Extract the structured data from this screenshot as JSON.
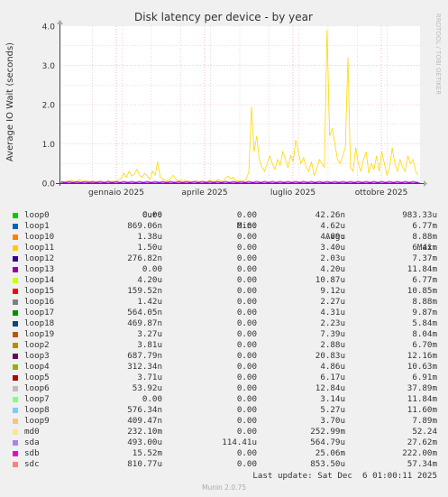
{
  "chart_data": {
    "type": "line",
    "title": "Disk latency per device - by year",
    "ylabel": "Average IO Wait (seconds)",
    "side_label": "RRDTOOL / TOBI OETIKER",
    "ylim": [
      0,
      4.0
    ],
    "y_ticks": [
      {
        "v": 0.0,
        "label": "0.0"
      },
      {
        "v": 1.0,
        "label": "1.0"
      },
      {
        "v": 2.0,
        "label": "2.0"
      },
      {
        "v": 3.0,
        "label": "3.0"
      },
      {
        "v": 4.0,
        "label": "4.0"
      }
    ],
    "x_ticks": [
      {
        "pos": 0.16,
        "label": "gennaio 2025"
      },
      {
        "pos": 0.405,
        "label": "aprile 2025"
      },
      {
        "pos": 0.65,
        "label": "luglio 2025"
      },
      {
        "pos": 0.895,
        "label": "ottobre 2025"
      }
    ],
    "grid": true,
    "colors": {
      "md0": "#ffd700",
      "sda": "#cc00cc",
      "sdb": "#ff00ff",
      "baseline": "#5500aa",
      "grid_major": "#ff9999",
      "grid_minor": "#e0c0c0"
    },
    "series_md0": [
      0.03,
      0.02,
      0.05,
      0.04,
      0.08,
      0.03,
      0.02,
      0.1,
      0.05,
      0.03,
      0.06,
      0.04,
      0.02,
      0.03,
      0.05,
      0.04,
      0.03,
      0.02,
      0.06,
      0.04,
      0.05,
      0.03,
      0.08,
      0.12,
      0.25,
      0.15,
      0.3,
      0.18,
      0.22,
      0.35,
      0.2,
      0.15,
      0.25,
      0.18,
      0.1,
      0.3,
      0.2,
      0.55,
      0.15,
      0.1,
      0.08,
      0.05,
      0.12,
      0.2,
      0.1,
      0.05,
      0.08,
      0.06,
      0.04,
      0.05,
      0.03,
      0.04,
      0.06,
      0.03,
      0.05,
      0.04,
      0.03,
      0.08,
      0.05,
      0.04,
      0.1,
      0.06,
      0.04,
      0.12,
      0.18,
      0.1,
      0.15,
      0.05,
      0.06,
      0.04,
      0.05,
      0.1,
      0.3,
      1.95,
      0.8,
      1.2,
      0.6,
      0.4,
      0.3,
      0.5,
      0.7,
      0.5,
      0.35,
      0.6,
      0.45,
      0.8,
      0.6,
      0.4,
      0.7,
      0.55,
      1.1,
      0.8,
      0.5,
      0.65,
      0.4,
      0.3,
      0.55,
      0.2,
      0.35,
      0.6,
      0.5,
      0.4,
      3.9,
      1.2,
      1.4,
      1.0,
      0.6,
      0.5,
      0.7,
      0.9,
      3.2,
      0.4,
      0.3,
      0.9,
      0.5,
      0.3,
      0.6,
      0.8,
      0.25,
      0.5,
      0.35,
      0.7,
      0.3,
      0.8,
      0.5,
      0.2,
      0.4,
      0.9,
      0.5,
      0.3,
      0.6,
      0.4,
      0.3,
      0.7,
      0.5,
      0.6,
      0.3,
      0.2
    ]
  },
  "legend": {
    "headers": {
      "cur": "Cur:",
      "min": "Min:",
      "avg": "Avg:",
      "max": "Max:"
    },
    "rows": [
      {
        "name": "loop0",
        "color": "#00cc00",
        "cur": "0.00",
        "min": "0.00",
        "avg": "42.26n",
        "max": "983.33u"
      },
      {
        "name": "loop1",
        "color": "#0066b3",
        "cur": "869.06n",
        "min": "0.00",
        "avg": "4.62u",
        "max": "6.77m"
      },
      {
        "name": "loop10",
        "color": "#ff8000",
        "cur": "1.38u",
        "min": "0.00",
        "avg": "4.89u",
        "max": "8.88m"
      },
      {
        "name": "loop11",
        "color": "#ffcc00",
        "cur": "1.50u",
        "min": "0.00",
        "avg": "3.40u",
        "max": "6.41m"
      },
      {
        "name": "loop12",
        "color": "#330099",
        "cur": "276.82n",
        "min": "0.00",
        "avg": "2.03u",
        "max": "7.37m"
      },
      {
        "name": "loop13",
        "color": "#990099",
        "cur": "0.00",
        "min": "0.00",
        "avg": "4.20u",
        "max": "11.84m"
      },
      {
        "name": "loop14",
        "color": "#ccff00",
        "cur": "4.20u",
        "min": "0.00",
        "avg": "10.87u",
        "max": "6.77m"
      },
      {
        "name": "loop15",
        "color": "#ff0000",
        "cur": "159.52n",
        "min": "0.00",
        "avg": "9.12u",
        "max": "10.85m"
      },
      {
        "name": "loop16",
        "color": "#808080",
        "cur": "1.42u",
        "min": "0.00",
        "avg": "2.27u",
        "max": "8.88m"
      },
      {
        "name": "loop17",
        "color": "#008f00",
        "cur": "564.05n",
        "min": "0.00",
        "avg": "4.31u",
        "max": "9.87m"
      },
      {
        "name": "loop18",
        "color": "#00487d",
        "cur": "469.87n",
        "min": "0.00",
        "avg": "2.23u",
        "max": "5.84m"
      },
      {
        "name": "loop19",
        "color": "#b35a00",
        "cur": "3.27u",
        "min": "0.00",
        "avg": "7.39u",
        "max": "8.04m"
      },
      {
        "name": "loop2",
        "color": "#b38f00",
        "cur": "3.81u",
        "min": "0.00",
        "avg": "2.88u",
        "max": "6.70m"
      },
      {
        "name": "loop3",
        "color": "#6b006b",
        "cur": "687.79n",
        "min": "0.00",
        "avg": "20.83u",
        "max": "12.16m"
      },
      {
        "name": "loop4",
        "color": "#8fb300",
        "cur": "312.34n",
        "min": "0.00",
        "avg": "4.86u",
        "max": "10.63m"
      },
      {
        "name": "loop5",
        "color": "#b30000",
        "cur": "3.71u",
        "min": "0.00",
        "avg": "6.17u",
        "max": "6.91m"
      },
      {
        "name": "loop6",
        "color": "#bebebe",
        "cur": "53.92u",
        "min": "0.00",
        "avg": "12.84u",
        "max": "37.89m"
      },
      {
        "name": "loop7",
        "color": "#80ff80",
        "cur": "0.00",
        "min": "0.00",
        "avg": "3.14u",
        "max": "11.84m"
      },
      {
        "name": "loop8",
        "color": "#80c9ff",
        "cur": "576.34n",
        "min": "0.00",
        "avg": "5.27u",
        "max": "11.60m"
      },
      {
        "name": "loop9",
        "color": "#ffc080",
        "cur": "409.47n",
        "min": "0.00",
        "avg": "3.70u",
        "max": "7.89m"
      },
      {
        "name": "md0",
        "color": "#ffe680",
        "cur": "232.10m",
        "min": "0.00",
        "avg": "252.99m",
        "max": "52.24"
      },
      {
        "name": "sda",
        "color": "#aa80ff",
        "cur": "493.00u",
        "min": "114.41u",
        "avg": "564.79u",
        "max": "27.62m"
      },
      {
        "name": "sdb",
        "color": "#ee00cc",
        "cur": "15.52m",
        "min": "0.00",
        "avg": "25.06m",
        "max": "222.00m"
      },
      {
        "name": "sdc",
        "color": "#ff8080",
        "cur": "810.77u",
        "min": "0.00",
        "avg": "853.50u",
        "max": "57.34m"
      }
    ]
  },
  "last_update": "Last update: Sat Dec  6 01:00:11 2025",
  "footer": "Munin 2.0.75"
}
